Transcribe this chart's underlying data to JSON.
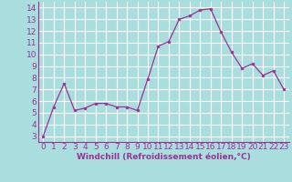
{
  "x": [
    0,
    1,
    2,
    3,
    4,
    5,
    6,
    7,
    8,
    9,
    10,
    11,
    12,
    13,
    14,
    15,
    16,
    17,
    18,
    19,
    20,
    21,
    22,
    23
  ],
  "y": [
    3.0,
    5.5,
    7.5,
    5.2,
    5.4,
    5.8,
    5.8,
    5.5,
    5.5,
    5.2,
    7.9,
    10.7,
    11.1,
    13.0,
    13.3,
    13.8,
    13.9,
    11.9,
    10.2,
    8.8,
    9.2,
    8.2,
    8.6,
    7.0
  ],
  "line_color": "#993399",
  "marker_color": "#993399",
  "bg_color": "#aadddd",
  "grid_color": "#ffffff",
  "xlabel": "Windchill (Refroidissement éolien,°C)",
  "xlabel_color": "#993399",
  "xlim": [
    -0.5,
    23.5
  ],
  "ylim": [
    2.5,
    14.5
  ],
  "yticks": [
    3,
    4,
    5,
    6,
    7,
    8,
    9,
    10,
    11,
    12,
    13,
    14
  ],
  "xtick_labels": [
    "0",
    "1",
    "2",
    "3",
    "4",
    "5",
    "6",
    "7",
    "8",
    "9",
    "10",
    "11",
    "12",
    "13",
    "14",
    "15",
    "16",
    "17",
    "18",
    "19",
    "20",
    "21",
    "22",
    "23"
  ],
  "tick_color": "#993399",
  "label_fontsize": 6.5,
  "tick_fontsize": 6.5
}
